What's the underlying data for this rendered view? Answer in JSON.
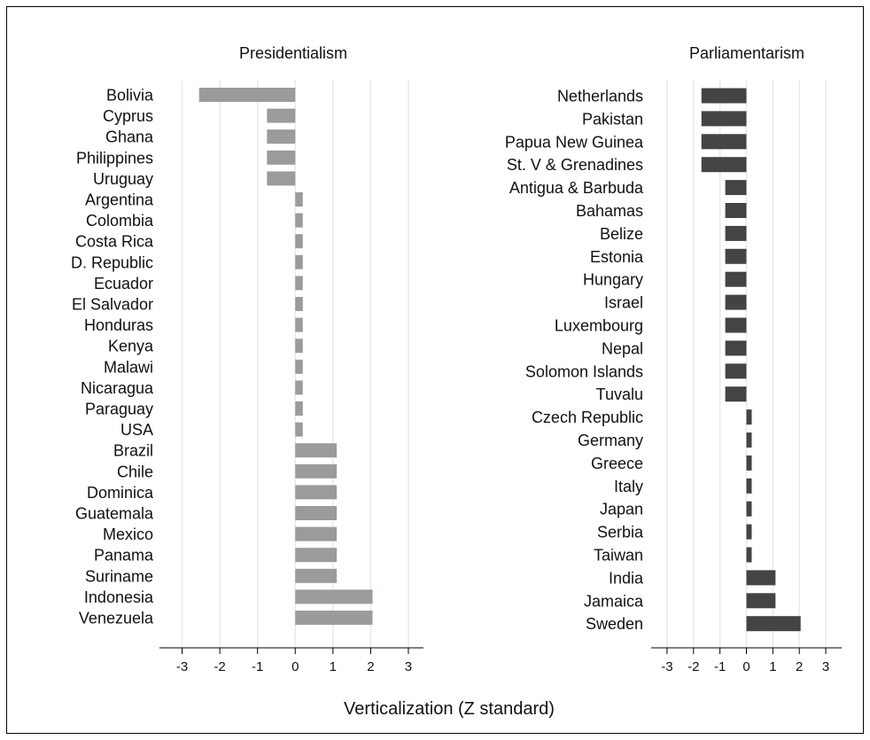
{
  "xlabel": "Verticalization (Z standard)",
  "chart_data": [
    {
      "type": "bar",
      "orientation": "horizontal",
      "title": "Presidentialism",
      "categories": [
        "Bolivia",
        "Cyprus",
        "Ghana",
        "Philippines",
        "Uruguay",
        "Argentina",
        "Colombia",
        "Costa Rica",
        "D. Republic",
        "Ecuador",
        "El Salvador",
        "Honduras",
        "Kenya",
        "Malawi",
        "Nicaragua",
        "Paraguay",
        "USA",
        "Brazil",
        "Chile",
        "Dominica",
        "Guatemala",
        "Mexico",
        "Panama",
        "Suriname",
        "Indonesia",
        "Venezuela"
      ],
      "values": [
        -2.55,
        -0.75,
        -0.75,
        -0.75,
        -0.75,
        0.2,
        0.2,
        0.2,
        0.2,
        0.2,
        0.2,
        0.2,
        0.2,
        0.2,
        0.2,
        0.2,
        0.2,
        1.1,
        1.1,
        1.1,
        1.1,
        1.1,
        1.1,
        1.1,
        2.05,
        2.05
      ],
      "xlim": [
        -3.6,
        3.4
      ],
      "xticks": [
        -3,
        -2,
        -1,
        0,
        1,
        2,
        3
      ],
      "xticklabels": [
        "-3",
        "-2",
        "-1",
        "0",
        "1",
        "2",
        "3"
      ],
      "color": "#9b9b9b",
      "grid": true
    },
    {
      "type": "bar",
      "orientation": "horizontal",
      "title": "Parliamentarism",
      "categories": [
        "Netherlands",
        "Pakistan",
        "Papua New Guinea",
        "St. V & Grenadines",
        "Antigua & Barbuda",
        "Bahamas",
        "Belize",
        "Estonia",
        "Hungary",
        "Israel",
        "Luxembourg",
        "Nepal",
        "Solomon Islands",
        "Tuvalu",
        "Czech Republic",
        "Germany",
        "Greece",
        "Italy",
        "Japan",
        "Serbia",
        "Taiwan",
        "India",
        "Jamaica",
        "Sweden"
      ],
      "values": [
        -1.7,
        -1.7,
        -1.7,
        -1.7,
        -0.8,
        -0.8,
        -0.8,
        -0.8,
        -0.8,
        -0.8,
        -0.8,
        -0.8,
        -0.8,
        -0.8,
        0.2,
        0.2,
        0.2,
        0.2,
        0.2,
        0.2,
        0.2,
        1.1,
        1.1,
        2.05
      ],
      "xlim": [
        -3.6,
        3.6
      ],
      "xticks": [
        -3,
        -2,
        -1,
        0,
        1,
        2,
        3
      ],
      "xticklabels": [
        "-3",
        "-2",
        "-1",
        "0",
        "1",
        "2",
        "3"
      ],
      "color": "#444444",
      "grid": true
    }
  ]
}
